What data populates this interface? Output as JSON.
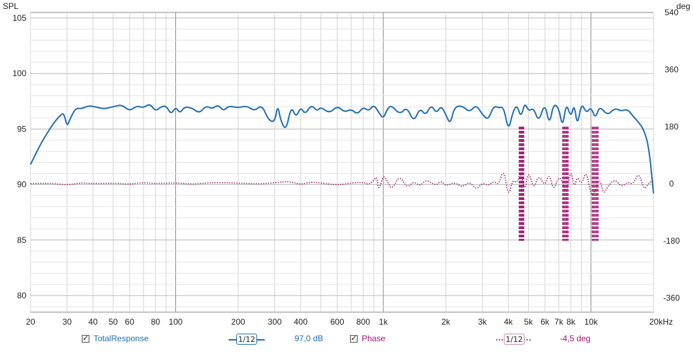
{
  "axes": {
    "left_title": "SPL",
    "right_title": "deg",
    "left_ticks": [
      {
        "value": 105,
        "label": "105"
      },
      {
        "value": 100,
        "label": "100"
      },
      {
        "value": 95,
        "label": "95"
      },
      {
        "value": 90,
        "label": "90"
      },
      {
        "value": 85,
        "label": "85"
      },
      {
        "value": 80,
        "label": "80"
      }
    ],
    "right_ticks": [
      {
        "value": 540,
        "label": "540"
      },
      {
        "value": 360,
        "label": "360"
      },
      {
        "value": 180,
        "label": "180"
      },
      {
        "value": 0,
        "label": "0"
      },
      {
        "value": -180,
        "label": "-180"
      },
      {
        "value": -360,
        "label": "-360"
      }
    ],
    "x_ticks": [
      {
        "value": 20,
        "label": "20"
      },
      {
        "value": 30,
        "label": "30"
      },
      {
        "value": 40,
        "label": "40"
      },
      {
        "value": 50,
        "label": "50"
      },
      {
        "value": 60,
        "label": "60"
      },
      {
        "value": 80,
        "label": "80"
      },
      {
        "value": 100,
        "label": "100"
      },
      {
        "value": 200,
        "label": "200"
      },
      {
        "value": 300,
        "label": "300"
      },
      {
        "value": 400,
        "label": "400"
      },
      {
        "value": 600,
        "label": "600"
      },
      {
        "value": 800,
        "label": "800"
      },
      {
        "value": 1000,
        "label": "1k"
      },
      {
        "value": 2000,
        "label": "2k"
      },
      {
        "value": 3000,
        "label": "3k"
      },
      {
        "value": 4000,
        "label": "4k"
      },
      {
        "value": 5000,
        "label": "5k"
      },
      {
        "value": 6000,
        "label": "6k"
      },
      {
        "value": 7000,
        "label": "7k"
      },
      {
        "value": 8000,
        "label": "8k"
      },
      {
        "value": 10000,
        "label": "10k"
      },
      {
        "value": 20000,
        "label": "20kHz"
      }
    ]
  },
  "legend": {
    "spl_name": "TotalResponse",
    "spl_smoothing": "1/12",
    "spl_value": "97,0 dB",
    "phase_name": "Phase",
    "phase_smoothing": "1/12",
    "phase_value": "-4,5 deg"
  },
  "colors": {
    "spl": "#1f6eb4",
    "phase": "#a0146e",
    "grid_minor": "#d4d4d4",
    "grid_major": "#888888",
    "legend_spl_text": "#1f6eb4",
    "legend_phase_text": "#a0146e"
  },
  "chart_data": {
    "type": "line",
    "x_scale": "log",
    "xlim": [
      20,
      20000
    ],
    "ylim": [
      78.5,
      105.5
    ],
    "y2lim": [
      -405,
      540
    ],
    "grid": true,
    "series": [
      {
        "name": "TotalResponse",
        "axis": "left",
        "style": "solid",
        "x": [
          20,
          22,
          24,
          26,
          28,
          29,
          30,
          31,
          33,
          35,
          38,
          41,
          45,
          50,
          55,
          60,
          65,
          70,
          75,
          80,
          85,
          90,
          95,
          100,
          105,
          110,
          120,
          130,
          140,
          150,
          160,
          170,
          180,
          200,
          220,
          240,
          260,
          280,
          300,
          310,
          320,
          340,
          360,
          380,
          400,
          420,
          450,
          480,
          500,
          550,
          600,
          650,
          700,
          750,
          800,
          850,
          900,
          950,
          1000,
          1050,
          1100,
          1200,
          1300,
          1400,
          1500,
          1600,
          1700,
          1800,
          1900,
          2000,
          2100,
          2200,
          2400,
          2600,
          2800,
          3000,
          3200,
          3400,
          3600,
          3800,
          4000,
          4200,
          4400,
          4600,
          4800,
          5000,
          5300,
          5600,
          6000,
          6300,
          6600,
          7000,
          7300,
          7600,
          8000,
          8300,
          8600,
          9000,
          9500,
          10000,
          10500,
          11000,
          12000,
          13000,
          14000,
          15000,
          16000,
          17000,
          18000,
          19000,
          20000
        ],
        "y": [
          91.8,
          93.4,
          94.6,
          95.6,
          96.3,
          96.4,
          95.2,
          95.9,
          96.9,
          96.8,
          97.1,
          97.0,
          96.8,
          97.0,
          97.2,
          96.6,
          97.1,
          96.9,
          97.3,
          96.6,
          97.0,
          97.1,
          96.3,
          97.0,
          96.4,
          97.0,
          96.9,
          96.4,
          97.1,
          96.8,
          97.2,
          96.6,
          97.1,
          96.9,
          97.1,
          96.6,
          97.2,
          95.8,
          95.6,
          97.2,
          95.8,
          94.8,
          97.1,
          96.0,
          97.0,
          96.3,
          97.2,
          96.6,
          97.0,
          96.4,
          97.1,
          96.5,
          96.8,
          96.3,
          97.0,
          96.6,
          97.2,
          96.5,
          95.9,
          96.9,
          97.1,
          96.3,
          97.0,
          95.6,
          96.9,
          96.2,
          97.2,
          96.4,
          97.1,
          96.3,
          95.4,
          97.0,
          97.1,
          96.5,
          97.2,
          96.3,
          95.8,
          97.1,
          96.9,
          97.0,
          94.8,
          96.5,
          97.2,
          96.0,
          97.4,
          96.6,
          96.9,
          95.6,
          97.4,
          95.3,
          97.3,
          96.9,
          95.1,
          97.4,
          96.0,
          97.3,
          95.2,
          97.4,
          96.4,
          97.0,
          95.9,
          97.1,
          96.2,
          96.9,
          96.6,
          96.8,
          96.1,
          95.6,
          94.9,
          93.4,
          89.2
        ]
      },
      {
        "name": "Phase",
        "axis": "right",
        "style": "dotted",
        "x": [
          20,
          25,
          30,
          35,
          40,
          50,
          60,
          70,
          80,
          100,
          120,
          150,
          200,
          250,
          300,
          350,
          400,
          450,
          500,
          600,
          700,
          800,
          850,
          900,
          930,
          950,
          1000,
          1050,
          1100,
          1200,
          1300,
          1400,
          1500,
          1600,
          1700,
          1800,
          1900,
          2000,
          2200,
          2400,
          2600,
          2800,
          3000,
          3200,
          3400,
          3600,
          3800,
          4000,
          4200,
          4400,
          4600,
          4800,
          5000,
          5300,
          5600,
          6000,
          6300,
          6600,
          7000,
          7300,
          7600,
          8000,
          8300,
          8600,
          9000,
          9500,
          10000,
          10500,
          11000,
          11500,
          12000,
          13000,
          14000,
          15000,
          16000,
          17000,
          18000,
          19000,
          20000
        ],
        "y": [
          0,
          2,
          -4,
          3,
          0,
          2,
          -2,
          4,
          0,
          3,
          -2,
          4,
          2,
          -1,
          3,
          8,
          -3,
          6,
          2,
          -4,
          2,
          5,
          -3,
          10,
          25,
          -25,
          30,
          5,
          -20,
          28,
          -15,
          8,
          -8,
          12,
          3,
          -5,
          10,
          -8,
          5,
          -12,
          8,
          -20,
          3,
          -6,
          8,
          -4,
          50,
          -45,
          15,
          0,
          40,
          -30,
          45,
          -20,
          30,
          -10,
          35,
          -25,
          25,
          5,
          -35,
          50,
          -15,
          25,
          -5,
          45,
          -40,
          -25,
          20,
          -35,
          -10,
          15,
          -10,
          5,
          -2,
          38,
          -22,
          3,
          10
        ]
      }
    ],
    "annotations": {
      "phase_wrap_bands_hz": [
        [
          4520,
          4740
        ],
        [
          7320,
          7750
        ],
        [
          10150,
          10800
        ]
      ],
      "phase_wrap_range_deg": [
        -180,
        180
      ]
    }
  }
}
